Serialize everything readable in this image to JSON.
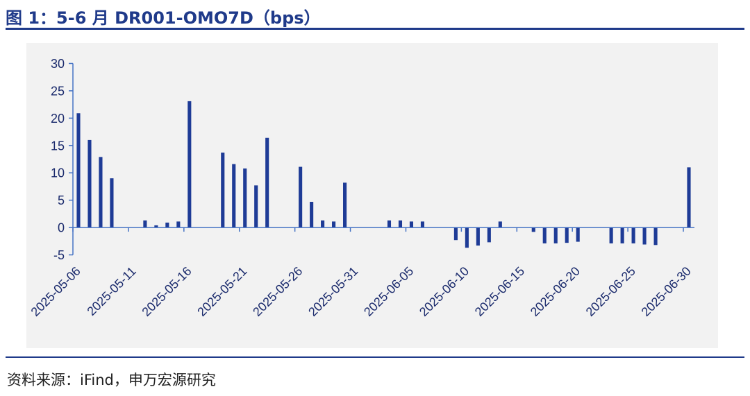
{
  "header": {
    "title": "图 1：5-6 月 DR001-OMO7D（bps）"
  },
  "footer": {
    "source": "资料来源：iFind，申万宏源研究"
  },
  "colors": {
    "bar": "#1e3b96",
    "axis": "#4472c4",
    "title": "#1f3a8a"
  },
  "chart_data": {
    "type": "bar",
    "title": "",
    "xlabel": "",
    "ylabel": "",
    "ylim": [
      -5,
      30
    ],
    "yticks": [
      30,
      25,
      20,
      15,
      10,
      5,
      0,
      -5
    ],
    "grid": false,
    "legend": "none",
    "x_range": [
      "2025-05-06",
      "2025-06-30"
    ],
    "x_tick_labels": [
      "2025-05-06",
      "2025-05-11",
      "2025-05-16",
      "2025-05-21",
      "2025-05-26",
      "2025-05-31",
      "2025-06-05",
      "2025-06-10",
      "2025-06-15",
      "2025-06-20",
      "2025-06-25",
      "2025-06-30"
    ],
    "points": [
      {
        "date": "2025-05-06",
        "value": 20.9
      },
      {
        "date": "2025-05-07",
        "value": 16.0
      },
      {
        "date": "2025-05-08",
        "value": 12.9
      },
      {
        "date": "2025-05-09",
        "value": 9.0
      },
      {
        "date": "2025-05-12",
        "value": 1.3
      },
      {
        "date": "2025-05-13",
        "value": 0.4
      },
      {
        "date": "2025-05-14",
        "value": 0.9
      },
      {
        "date": "2025-05-15",
        "value": 1.1
      },
      {
        "date": "2025-05-16",
        "value": 23.1
      },
      {
        "date": "2025-05-19",
        "value": 13.7
      },
      {
        "date": "2025-05-20",
        "value": 11.6
      },
      {
        "date": "2025-05-21",
        "value": 10.8
      },
      {
        "date": "2025-05-22",
        "value": 7.7
      },
      {
        "date": "2025-05-23",
        "value": 16.4
      },
      {
        "date": "2025-05-26",
        "value": 11.1
      },
      {
        "date": "2025-05-27",
        "value": 4.7
      },
      {
        "date": "2025-05-28",
        "value": 1.3
      },
      {
        "date": "2025-05-29",
        "value": 1.1
      },
      {
        "date": "2025-05-30",
        "value": 8.2
      },
      {
        "date": "2025-06-03",
        "value": 1.3
      },
      {
        "date": "2025-06-04",
        "value": 1.3
      },
      {
        "date": "2025-06-05",
        "value": 1.1
      },
      {
        "date": "2025-06-06",
        "value": 1.1
      },
      {
        "date": "2025-06-09",
        "value": -2.3
      },
      {
        "date": "2025-06-10",
        "value": -3.7
      },
      {
        "date": "2025-06-11",
        "value": -3.3
      },
      {
        "date": "2025-06-12",
        "value": -2.7
      },
      {
        "date": "2025-06-13",
        "value": 1.1
      },
      {
        "date": "2025-06-16",
        "value": -0.8
      },
      {
        "date": "2025-06-17",
        "value": -2.9
      },
      {
        "date": "2025-06-18",
        "value": -2.9
      },
      {
        "date": "2025-06-19",
        "value": -2.8
      },
      {
        "date": "2025-06-20",
        "value": -2.6
      },
      {
        "date": "2025-06-23",
        "value": -2.9
      },
      {
        "date": "2025-06-24",
        "value": -2.9
      },
      {
        "date": "2025-06-25",
        "value": -2.9
      },
      {
        "date": "2025-06-26",
        "value": -3.1
      },
      {
        "date": "2025-06-27",
        "value": -3.2
      },
      {
        "date": "2025-06-30",
        "value": 11.0
      }
    ]
  }
}
